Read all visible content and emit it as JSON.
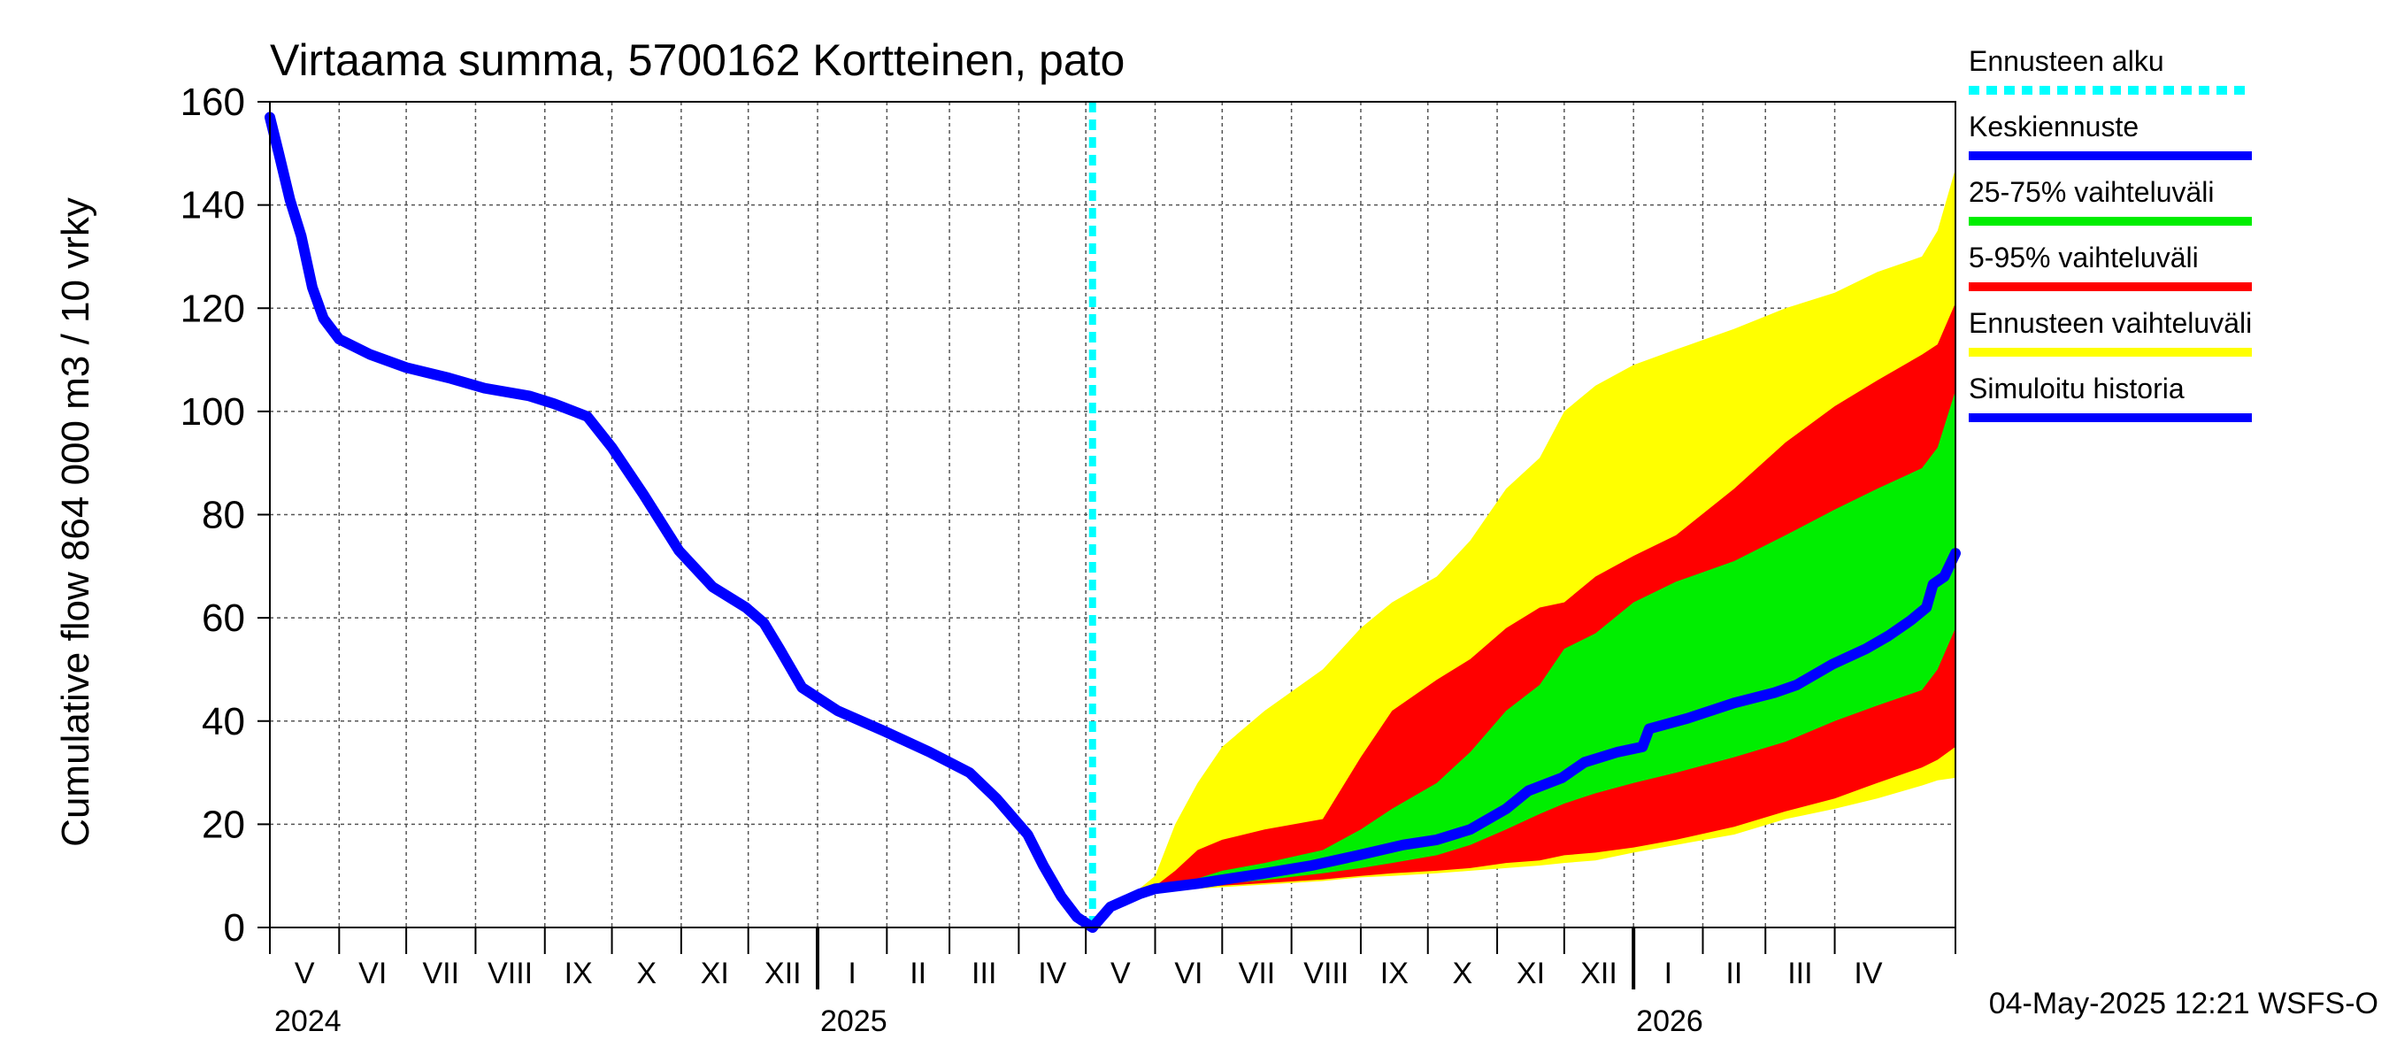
{
  "chart_data": {
    "type": "line",
    "title": "Virtaama summa, 5700162 Kortteinen, pato",
    "ylabel": "Cumulative flow    864 000 m3 / 10 vrky",
    "ylim": [
      0,
      160
    ],
    "yticks": [
      "0",
      "20",
      "40",
      "60",
      "80",
      "100",
      "120",
      "140",
      "160"
    ],
    "xlim": [
      "2024-05-01",
      "2026-05-25"
    ],
    "months": [
      "V",
      "VI",
      "VII",
      "VIII",
      "IX",
      "X",
      "XI",
      "XII",
      "I",
      "II",
      "III",
      "IV",
      "V",
      "VI",
      "VII",
      "VIII",
      "IX",
      "X",
      "XI",
      "XII",
      "I",
      "II",
      "III",
      "IV"
    ],
    "years": [
      "2024",
      "2025",
      "2026"
    ],
    "forecast_start": "2025-05-04",
    "grid": true,
    "legend_position": "right",
    "legend": [
      {
        "label": "Ennusteen alku",
        "color": "#00ffff",
        "style": "dashed"
      },
      {
        "label": "Keskiennuste",
        "color": "#0000ff",
        "style": "solid"
      },
      {
        "label": "25-75% vaihteluväli",
        "color": "#00ee00",
        "style": "solid"
      },
      {
        "label": "5-95% vaihteluväli",
        "color": "#ff0000",
        "style": "solid"
      },
      {
        "label": "Ennusteen vaihteluväli",
        "color": "#ffff00",
        "style": "solid"
      },
      {
        "label": "Simuloitu historia",
        "color": "#0000ff",
        "style": "solid"
      }
    ],
    "series": [
      {
        "name": "Simuloitu historia",
        "color": "#0000ff",
        "points": [
          [
            "2024-05-01",
            157
          ],
          [
            "2024-05-05",
            150
          ],
          [
            "2024-05-10",
            141
          ],
          [
            "2024-05-15",
            134
          ],
          [
            "2024-05-20",
            124
          ],
          [
            "2024-05-25",
            118
          ],
          [
            "2024-06-01",
            114
          ],
          [
            "2024-06-15",
            111
          ],
          [
            "2024-07-01",
            108.5
          ],
          [
            "2024-07-20",
            106.5
          ],
          [
            "2024-08-05",
            104.5
          ],
          [
            "2024-08-25",
            103
          ],
          [
            "2024-09-05",
            101.5
          ],
          [
            "2024-09-20",
            99
          ],
          [
            "2024-10-01",
            93
          ],
          [
            "2024-10-15",
            84
          ],
          [
            "2024-10-31",
            73
          ],
          [
            "2024-11-15",
            66
          ],
          [
            "2024-11-30",
            62
          ],
          [
            "2024-12-08",
            59
          ],
          [
            "2024-12-15",
            54
          ],
          [
            "2024-12-25",
            46.5
          ],
          [
            "2025-01-10",
            42
          ],
          [
            "2025-01-31",
            38
          ],
          [
            "2025-02-20",
            34
          ],
          [
            "2025-03-10",
            30
          ],
          [
            "2025-03-22",
            25
          ],
          [
            "2025-04-05",
            18
          ],
          [
            "2025-04-12",
            12
          ],
          [
            "2025-04-20",
            6
          ],
          [
            "2025-04-27",
            2
          ],
          [
            "2025-05-04",
            0
          ]
        ]
      },
      {
        "name": "Keskiennuste",
        "color": "#0000ff",
        "points": [
          [
            "2025-05-04",
            0
          ],
          [
            "2025-05-12",
            4
          ],
          [
            "2025-05-25",
            6.5
          ],
          [
            "2025-06-01",
            7.5
          ],
          [
            "2025-06-20",
            8.5
          ],
          [
            "2025-07-05",
            9.5
          ],
          [
            "2025-07-20",
            10.5
          ],
          [
            "2025-08-10",
            12
          ],
          [
            "2025-08-31",
            14
          ],
          [
            "2025-09-20",
            16
          ],
          [
            "2025-10-05",
            17
          ],
          [
            "2025-10-20",
            19
          ],
          [
            "2025-11-05",
            23
          ],
          [
            "2025-11-15",
            26.5
          ],
          [
            "2025-11-30",
            29
          ],
          [
            "2025-12-10",
            32
          ],
          [
            "2025-12-25",
            34
          ],
          [
            "2026-01-05",
            35
          ],
          [
            "2026-01-08",
            38.5
          ],
          [
            "2026-01-25",
            40.5
          ],
          [
            "2026-02-15",
            43.5
          ],
          [
            "2026-03-05",
            45.5
          ],
          [
            "2026-03-15",
            47
          ],
          [
            "2026-03-31",
            51
          ],
          [
            "2026-04-15",
            54
          ],
          [
            "2026-04-25",
            56.5
          ],
          [
            "2026-05-05",
            59.5
          ],
          [
            "2026-05-12",
            62
          ],
          [
            "2026-05-15",
            66.5
          ],
          [
            "2026-05-20",
            68
          ],
          [
            "2026-05-25",
            72.5
          ]
        ]
      }
    ],
    "bands": [
      {
        "name": "Ennusteen vaihteluväli",
        "color": "#ffff00",
        "x": [
          "2025-05-04",
          "2025-05-15",
          "2025-06-01",
          "2025-06-10",
          "2025-06-20",
          "2025-07-01",
          "2025-07-20",
          "2025-08-15",
          "2025-09-01",
          "2025-09-15",
          "2025-10-05",
          "2025-10-20",
          "2025-11-05",
          "2025-11-20",
          "2025-12-01",
          "2025-12-15",
          "2026-01-01",
          "2026-01-20",
          "2026-02-15",
          "2026-03-10",
          "2026-04-01",
          "2026-04-20",
          "2026-05-10",
          "2026-05-17",
          "2026-05-25"
        ],
        "upper": [
          0,
          4,
          10,
          20,
          28,
          35,
          42,
          50,
          58,
          63,
          68,
          75,
          85,
          91,
          100,
          105,
          109,
          112,
          116,
          120,
          123,
          127,
          130,
          135,
          147
        ],
        "lower": [
          0,
          4,
          7,
          7.2,
          7.5,
          7.8,
          8.3,
          9,
          9.7,
          10,
          10.5,
          11,
          11.5,
          12,
          12.5,
          13,
          14.5,
          16,
          18,
          21,
          23,
          25,
          27.5,
          28.5,
          29
        ]
      },
      {
        "name": "5-95% vaihteluväli",
        "color": "#ff0000",
        "x": [
          "2025-05-04",
          "2025-05-15",
          "2025-06-01",
          "2025-06-10",
          "2025-06-20",
          "2025-07-01",
          "2025-07-20",
          "2025-08-15",
          "2025-09-01",
          "2025-09-15",
          "2025-10-05",
          "2025-10-20",
          "2025-11-05",
          "2025-11-20",
          "2025-12-01",
          "2025-12-15",
          "2026-01-01",
          "2026-01-20",
          "2026-02-15",
          "2026-03-10",
          "2026-04-01",
          "2026-04-20",
          "2026-05-10",
          "2026-05-17",
          "2026-05-25"
        ],
        "upper": [
          0,
          4,
          8,
          11,
          15,
          17,
          19,
          21,
          33,
          42,
          48,
          52,
          58,
          62,
          63,
          68,
          72,
          76,
          85,
          94,
          101,
          106,
          111,
          113,
          121
        ],
        "lower": [
          0,
          4,
          7.2,
          7.5,
          7.8,
          8.1,
          8.6,
          9.3,
          10,
          10.5,
          11,
          11.5,
          12.5,
          13,
          14,
          14.5,
          15.5,
          17,
          19.5,
          22.5,
          25,
          28,
          31,
          32.5,
          35
        ]
      },
      {
        "name": "25-75% vaihteluväli",
        "color": "#00ee00",
        "x": [
          "2025-05-04",
          "2025-05-15",
          "2025-06-01",
          "2025-06-10",
          "2025-06-20",
          "2025-07-01",
          "2025-07-20",
          "2025-08-15",
          "2025-09-01",
          "2025-09-15",
          "2025-10-05",
          "2025-10-20",
          "2025-11-05",
          "2025-11-20",
          "2025-12-01",
          "2025-12-15",
          "2026-01-01",
          "2026-01-20",
          "2026-02-15",
          "2026-03-10",
          "2026-04-01",
          "2026-04-20",
          "2026-05-10",
          "2026-05-17",
          "2026-05-25"
        ],
        "upper": [
          0,
          4,
          7.5,
          8.5,
          9.5,
          11,
          12.5,
          15,
          19,
          23,
          28,
          34,
          42,
          47,
          54,
          57,
          63,
          67,
          71,
          76,
          81,
          85,
          89,
          93,
          104
        ],
        "lower": [
          0,
          4,
          7.3,
          7.6,
          7.9,
          8.4,
          9.2,
          10.5,
          11.5,
          12.5,
          14,
          16,
          19,
          22,
          24,
          26,
          28,
          30,
          33,
          36,
          40,
          43,
          46,
          50,
          58
        ]
      }
    ]
  },
  "footer": "04-May-2025 12:21 WSFS-O"
}
